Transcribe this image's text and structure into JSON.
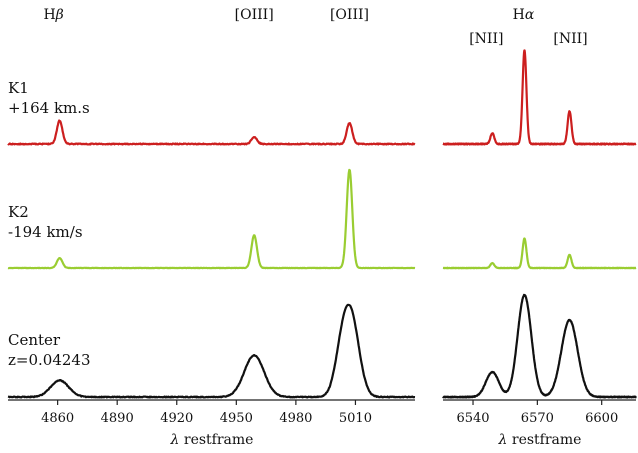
{
  "chart_data": {
    "type": "line",
    "panels": [
      {
        "id": "left",
        "xlabel_prefix": "λ",
        "xlabel_rest": " restframe",
        "xlim": [
          4835,
          5040
        ],
        "xticks": [
          4860,
          4890,
          4920,
          4950,
          4980,
          5010
        ],
        "line_labels": [
          {
            "text": "Hβ",
            "base": "H",
            "sym": "β",
            "x": 4861
          },
          {
            "text": "[OIII]",
            "x": 4959
          },
          {
            "text": "[OIII]",
            "x": 5007
          }
        ]
      },
      {
        "id": "right",
        "xlabel_prefix": "λ",
        "xlabel_rest": " restframe",
        "xlim": [
          6526,
          6616
        ],
        "xticks": [
          6540,
          6570,
          6600
        ],
        "line_labels": [
          {
            "text": "Hα",
            "base": "H",
            "sym": "α",
            "x": 6564
          },
          {
            "text": "[NII]",
            "x": 6549
          },
          {
            "text": "[NII]",
            "x": 6585
          }
        ]
      }
    ],
    "series": [
      {
        "name": "K1",
        "label_lines": [
          "K1",
          "+164 km.s"
        ],
        "color": "#cc1f1f",
        "baseline": 0.0,
        "noise": 0.012,
        "lines": [
          {
            "center": 4861,
            "sigma": 1.4,
            "amp": 0.3
          },
          {
            "center": 4959,
            "sigma": 1.4,
            "amp": 0.09
          },
          {
            "center": 5007,
            "sigma": 1.4,
            "amp": 0.27
          },
          {
            "center": 6549,
            "sigma": 0.9,
            "amp": 0.14
          },
          {
            "center": 6564,
            "sigma": 0.9,
            "amp": 1.2
          },
          {
            "center": 6585,
            "sigma": 0.9,
            "amp": 0.42
          }
        ]
      },
      {
        "name": "K2",
        "label_lines": [
          "K2",
          "-194 km/s"
        ],
        "color": "#9acd32",
        "baseline": 0.0,
        "noise": 0.005,
        "lines": [
          {
            "center": 4861,
            "sigma": 1.4,
            "amp": 0.12
          },
          {
            "center": 4959,
            "sigma": 1.4,
            "amp": 0.4
          },
          {
            "center": 5007,
            "sigma": 1.4,
            "amp": 1.2
          },
          {
            "center": 6549,
            "sigma": 0.9,
            "amp": 0.06
          },
          {
            "center": 6564,
            "sigma": 0.9,
            "amp": 0.36
          },
          {
            "center": 6585,
            "sigma": 0.9,
            "amp": 0.16
          }
        ]
      },
      {
        "name": "Center",
        "label_lines": [
          "Center",
          "z=0.04243"
        ],
        "color": "#111111",
        "baseline": 0.0,
        "noise": 0.008,
        "lines": [
          {
            "center": 4861,
            "sigma": 4.5,
            "amp": 0.16
          },
          {
            "center": 4959,
            "sigma": 5.0,
            "amp": 0.4
          },
          {
            "center": 5003,
            "sigma": 3.5,
            "amp": 0.36
          },
          {
            "center": 5008,
            "sigma": 4.0,
            "amp": 0.72
          },
          {
            "center": 6549,
            "sigma": 3.0,
            "amp": 0.24
          },
          {
            "center": 6564,
            "sigma": 3.2,
            "amp": 0.98
          },
          {
            "center": 6585,
            "sigma": 3.8,
            "amp": 0.74
          }
        ]
      }
    ]
  }
}
